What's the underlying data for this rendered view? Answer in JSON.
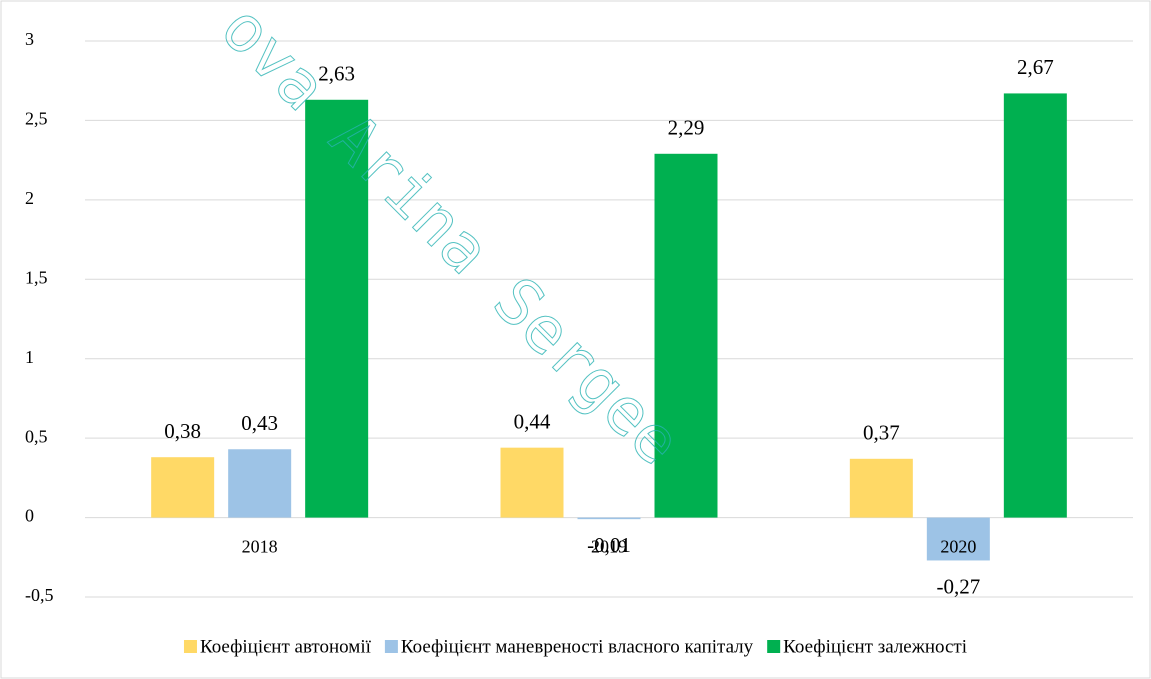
{
  "chart_data": {
    "type": "bar",
    "categories": [
      "2018",
      "2019",
      "2020"
    ],
    "series": [
      {
        "name": "Коефіцієнт автономії",
        "color": "#ffd966",
        "values": [
          0.38,
          0.44,
          0.37
        ],
        "value_labels": [
          "0,38",
          "0,44",
          "0,37"
        ]
      },
      {
        "name": "Коефіцієнт маневреності власного капіталу",
        "color": "#9dc3e6",
        "values": [
          0.43,
          -0.01,
          -0.27
        ],
        "value_labels": [
          "0,43",
          "-0,01",
          "-0,27"
        ]
      },
      {
        "name": "Коефіцієнт залежності",
        "color": "#00b050",
        "values": [
          2.63,
          2.29,
          2.67
        ],
        "value_labels": [
          "2,63",
          "2,29",
          "2,67"
        ]
      }
    ],
    "ylim": [
      -0.5,
      3
    ],
    "yticks": [
      {
        "value": -0.5,
        "label": "-0,5"
      },
      0,
      {
        "value": 0.5,
        "label": "0,5"
      },
      1,
      {
        "value": 1.5,
        "label": "1,5"
      },
      2,
      {
        "value": 2.5,
        "label": "2,5"
      },
      3
    ],
    "grid": true,
    "legend": "bottom",
    "watermark": "ova Arina Sergee"
  }
}
